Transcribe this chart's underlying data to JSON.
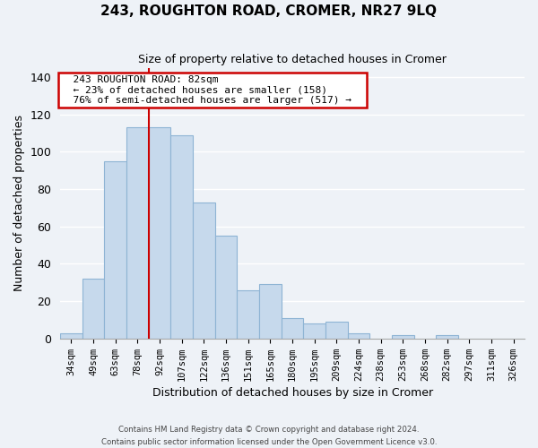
{
  "title": "243, ROUGHTON ROAD, CROMER, NR27 9LQ",
  "subtitle": "Size of property relative to detached houses in Cromer",
  "xlabel": "Distribution of detached houses by size in Cromer",
  "ylabel": "Number of detached properties",
  "bar_labels": [
    "34sqm",
    "49sqm",
    "63sqm",
    "78sqm",
    "92sqm",
    "107sqm",
    "122sqm",
    "136sqm",
    "151sqm",
    "165sqm",
    "180sqm",
    "195sqm",
    "209sqm",
    "224sqm",
    "238sqm",
    "253sqm",
    "268sqm",
    "282sqm",
    "297sqm",
    "311sqm",
    "326sqm"
  ],
  "bar_values": [
    3,
    32,
    95,
    113,
    113,
    109,
    73,
    55,
    26,
    29,
    11,
    8,
    9,
    3,
    0,
    2,
    0,
    2,
    0,
    0,
    0
  ],
  "bar_color": "#c6d9ec",
  "bar_edge_color": "#8eb4d4",
  "highlight_line_index": 3,
  "highlight_color": "#cc0000",
  "ylim": [
    0,
    145
  ],
  "yticks": [
    0,
    20,
    40,
    60,
    80,
    100,
    120,
    140
  ],
  "annotation_title": "243 ROUGHTON ROAD: 82sqm",
  "annotation_line1": "← 23% of detached houses are smaller (158)",
  "annotation_line2": "76% of semi-detached houses are larger (517) →",
  "footer_line1": "Contains HM Land Registry data © Crown copyright and database right 2024.",
  "footer_line2": "Contains public sector information licensed under the Open Government Licence v3.0.",
  "background_color": "#eef2f7",
  "plot_background": "#eef2f7",
  "grid_color": "#ffffff"
}
